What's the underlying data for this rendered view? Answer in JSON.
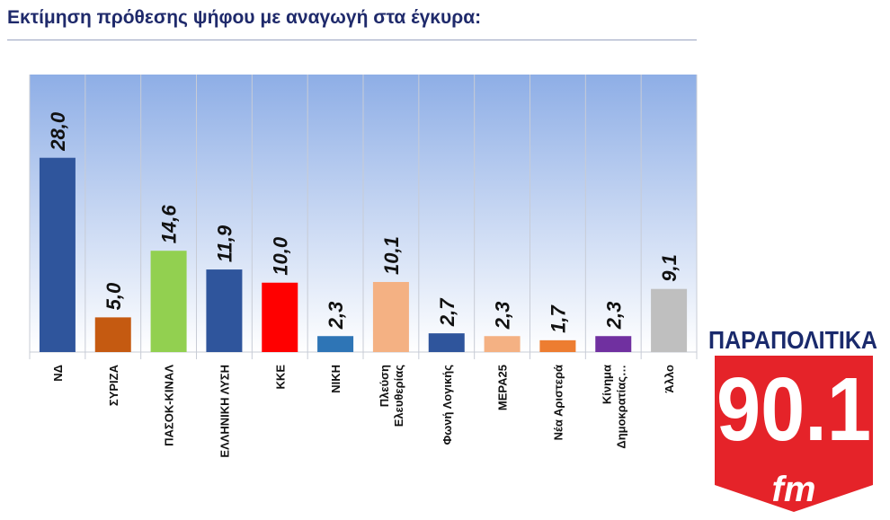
{
  "chart_data": {
    "type": "bar",
    "title": "Εκτίμηση πρόθεσης ψήφου με αναγωγή στα έγκυρα:",
    "categories": [
      [
        "ΝΔ"
      ],
      [
        "ΣΥΡΙΖΑ"
      ],
      [
        "ΠΑΣΟΚ-ΚΙΝΑΛ"
      ],
      [
        "ΕΛΛΗΝΙΚΗ ΛΥΣΗ"
      ],
      [
        "ΚΚΕ"
      ],
      [
        "ΝΙΚΗ"
      ],
      [
        "Πλεύση",
        "Ελευθερίας"
      ],
      [
        "Φωνή Λογικής"
      ],
      [
        "ΜΕΡΑ25"
      ],
      [
        "Νέα Αριστερά"
      ],
      [
        "Κίνημα",
        "Δημοκρατίας…"
      ],
      [
        "Άλλο"
      ]
    ],
    "values": [
      28.0,
      5.0,
      14.6,
      11.9,
      10.0,
      2.3,
      10.1,
      2.7,
      2.3,
      1.7,
      2.3,
      9.1
    ],
    "value_labels": [
      "28,0",
      "5,0",
      "14,6",
      "11,9",
      "10,0",
      "2,3",
      "10,1",
      "2,7",
      "2,3",
      "1,7",
      "2,3",
      "9,1"
    ],
    "colors": [
      "#2f559c",
      "#c55a11",
      "#92d050",
      "#2f559c",
      "#ff0000",
      "#2e75b6",
      "#f4b183",
      "#2f559c",
      "#f4b183",
      "#ed7d31",
      "#7030a0",
      "#bfbfbf"
    ],
    "xlabel": "",
    "ylabel": "",
    "ylim": [
      0,
      40
    ],
    "grid": "vertical category separators"
  },
  "logo": {
    "top": "ΠΑΡΑΠΟΛΙΤΙΚΑ",
    "freq": "90.1",
    "band": "fm",
    "red": "#e52329",
    "navy": "#1a2a6c"
  }
}
